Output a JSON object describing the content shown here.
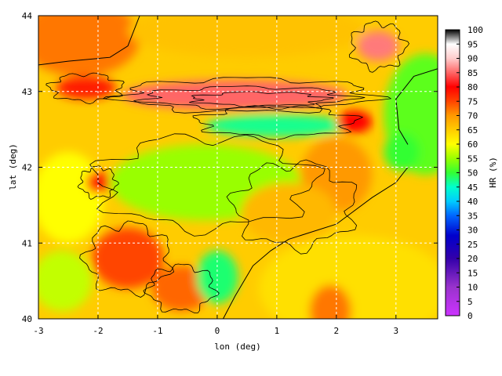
{
  "map": {
    "xlabel": "lon (deg)",
    "ylabel": "lat (deg)",
    "xlim": [
      -3,
      3.7
    ],
    "ylim": [
      40,
      44
    ],
    "xticks": [
      "-3",
      "-2",
      "-1",
      "0",
      "1",
      "2",
      "3"
    ],
    "yticks": [
      "40",
      "41",
      "42",
      "43",
      "44"
    ],
    "xtick_values": [
      -3,
      -2,
      -1,
      0,
      1,
      2,
      3
    ],
    "ytick_values": [
      40,
      41,
      42,
      43,
      44
    ],
    "grid": true,
    "field": "relative humidity",
    "contours": true
  },
  "colorbar": {
    "label": "HR (%)",
    "range": [
      0,
      100
    ],
    "tick_labels": [
      "100",
      "95",
      "90",
      "85",
      "80",
      "75",
      "70",
      "65",
      "60",
      "55",
      "50",
      "45",
      "40",
      "35",
      "30",
      "25",
      "20",
      "15",
      "10",
      "5",
      "0"
    ],
    "stops": [
      {
        "v": 0,
        "c": "#cc33ff"
      },
      {
        "v": 10,
        "c": "#9933cc"
      },
      {
        "v": 20,
        "c": "#3300aa"
      },
      {
        "v": 28,
        "c": "#0000cc"
      },
      {
        "v": 35,
        "c": "#0066ff"
      },
      {
        "v": 40,
        "c": "#00ccff"
      },
      {
        "v": 45,
        "c": "#00ffcc"
      },
      {
        "v": 50,
        "c": "#33ff33"
      },
      {
        "v": 55,
        "c": "#99ff00"
      },
      {
        "v": 60,
        "c": "#ffff00"
      },
      {
        "v": 65,
        "c": "#ffcc00"
      },
      {
        "v": 70,
        "c": "#ff9900"
      },
      {
        "v": 75,
        "c": "#ff4400"
      },
      {
        "v": 80,
        "c": "#ff0000"
      },
      {
        "v": 85,
        "c": "#ff6666"
      },
      {
        "v": 90,
        "c": "#ffcccc"
      },
      {
        "v": 95,
        "c": "#ffffff"
      },
      {
        "v": 100,
        "c": "#000000"
      }
    ]
  },
  "regions": [
    {
      "name": "sea-south-east",
      "hr": 63,
      "cx": 2.3,
      "cy": 40.4,
      "rx": 1.6,
      "ry": 0.7
    },
    {
      "name": "sea-balearic-strip",
      "hr": 72,
      "cx": 1.9,
      "cy": 40.1,
      "rx": 0.35,
      "ry": 0.35
    },
    {
      "name": "sea-gulf-lion",
      "hr": 52,
      "cx": 3.5,
      "cy": 42.7,
      "rx": 0.7,
      "ry": 0.8
    },
    {
      "name": "northwest-orange",
      "hr": 72,
      "cx": -2.3,
      "cy": 43.7,
      "rx": 1.0,
      "ry": 0.5
    },
    {
      "name": "atlantic-north",
      "hr": 66,
      "cx": 0.5,
      "cy": 43.8,
      "rx": 2.0,
      "ry": 0.35
    },
    {
      "name": "pyrenees-peaks",
      "hr": 93,
      "cx": 0.6,
      "cy": 42.9,
      "rx": 1.2,
      "ry": 0.12
    },
    {
      "name": "pyrenees-high",
      "hr": 85,
      "cx": 0.3,
      "cy": 42.95,
      "rx": 1.9,
      "ry": 0.2
    },
    {
      "name": "pyrenees-south-band",
      "hr": 47,
      "cx": 1.0,
      "cy": 42.55,
      "rx": 1.2,
      "ry": 0.15
    },
    {
      "name": "pyrenees-east",
      "hr": 80,
      "cx": 2.3,
      "cy": 42.6,
      "rx": 0.3,
      "ry": 0.15
    },
    {
      "name": "ebro-valley",
      "hr": 55,
      "cx": -0.2,
      "cy": 41.8,
      "rx": 1.6,
      "ry": 0.5
    },
    {
      "name": "catalonia-coast",
      "hr": 70,
      "cx": 2.0,
      "cy": 41.9,
      "rx": 0.6,
      "ry": 0.5
    },
    {
      "name": "catalonia-inland",
      "hr": 67,
      "cx": 1.2,
      "cy": 41.4,
      "rx": 0.8,
      "ry": 0.4
    },
    {
      "name": "iberian-range",
      "hr": 75,
      "cx": -1.5,
      "cy": 40.8,
      "rx": 0.6,
      "ry": 0.4
    },
    {
      "name": "teruel-highlands",
      "hr": 73,
      "cx": -0.6,
      "cy": 40.4,
      "rx": 0.5,
      "ry": 0.3
    },
    {
      "name": "valencia-coast",
      "hr": 48,
      "cx": 0.0,
      "cy": 40.55,
      "rx": 0.35,
      "ry": 0.35
    },
    {
      "name": "west-plateau",
      "hr": 60,
      "cx": -2.5,
      "cy": 41.6,
      "rx": 0.6,
      "ry": 0.6
    },
    {
      "name": "west-patch",
      "hr": 78,
      "cx": -2.0,
      "cy": 41.8,
      "rx": 0.2,
      "ry": 0.15
    },
    {
      "name": "massif-central",
      "hr": 86,
      "cx": 2.7,
      "cy": 43.6,
      "rx": 0.35,
      "ry": 0.2
    },
    {
      "name": "catalan-coast-blue",
      "hr": 50,
      "cx": 3.1,
      "cy": 42.2,
      "rx": 0.3,
      "ry": 0.25
    },
    {
      "name": "south-west-green",
      "hr": 57,
      "cx": -2.6,
      "cy": 40.5,
      "rx": 0.5,
      "ry": 0.4
    },
    {
      "name": "pyrenees-northwest",
      "hr": 78,
      "cx": -2.2,
      "cy": 43.05,
      "rx": 0.5,
      "ry": 0.15
    }
  ],
  "contour_rings": [
    {
      "cx": 0.5,
      "cy": 42.95,
      "rx": 2.1,
      "ry": 0.22
    },
    {
      "cx": 0.5,
      "cy": 42.92,
      "rx": 1.7,
      "ry": 0.14
    },
    {
      "cx": 0.7,
      "cy": 42.9,
      "rx": 1.1,
      "ry": 0.09
    },
    {
      "cx": 1.0,
      "cy": 42.6,
      "rx": 1.3,
      "ry": 0.2
    },
    {
      "cx": 1.3,
      "cy": 41.5,
      "rx": 1.0,
      "ry": 0.55
    },
    {
      "cx": -1.5,
      "cy": 40.8,
      "rx": 0.7,
      "ry": 0.45
    },
    {
      "cx": -0.6,
      "cy": 40.4,
      "rx": 0.55,
      "ry": 0.3
    },
    {
      "cx": -2.0,
      "cy": 41.8,
      "rx": 0.3,
      "ry": 0.2
    },
    {
      "cx": 2.7,
      "cy": 43.6,
      "rx": 0.45,
      "ry": 0.3
    },
    {
      "cx": -0.2,
      "cy": 41.8,
      "rx": 1.8,
      "ry": 0.6
    },
    {
      "cx": -2.2,
      "cy": 43.05,
      "rx": 0.6,
      "ry": 0.18
    }
  ],
  "coastline": [
    [
      -3.0,
      43.35
    ],
    [
      -2.5,
      43.4
    ],
    [
      -1.8,
      43.45
    ],
    [
      -1.5,
      43.6
    ],
    [
      -1.3,
      44.0
    ]
  ],
  "coastline_med": [
    [
      3.2,
      42.0
    ],
    [
      3.0,
      41.8
    ],
    [
      2.6,
      41.6
    ],
    [
      2.0,
      41.25
    ],
    [
      1.2,
      41.05
    ],
    [
      0.9,
      40.9
    ],
    [
      0.6,
      40.7
    ],
    [
      0.3,
      40.3
    ],
    [
      0.1,
      40.0
    ]
  ],
  "coastline_france": [
    [
      3.7,
      43.3
    ],
    [
      3.3,
      43.2
    ],
    [
      3.0,
      42.9
    ],
    [
      3.05,
      42.5
    ],
    [
      3.2,
      42.3
    ]
  ]
}
